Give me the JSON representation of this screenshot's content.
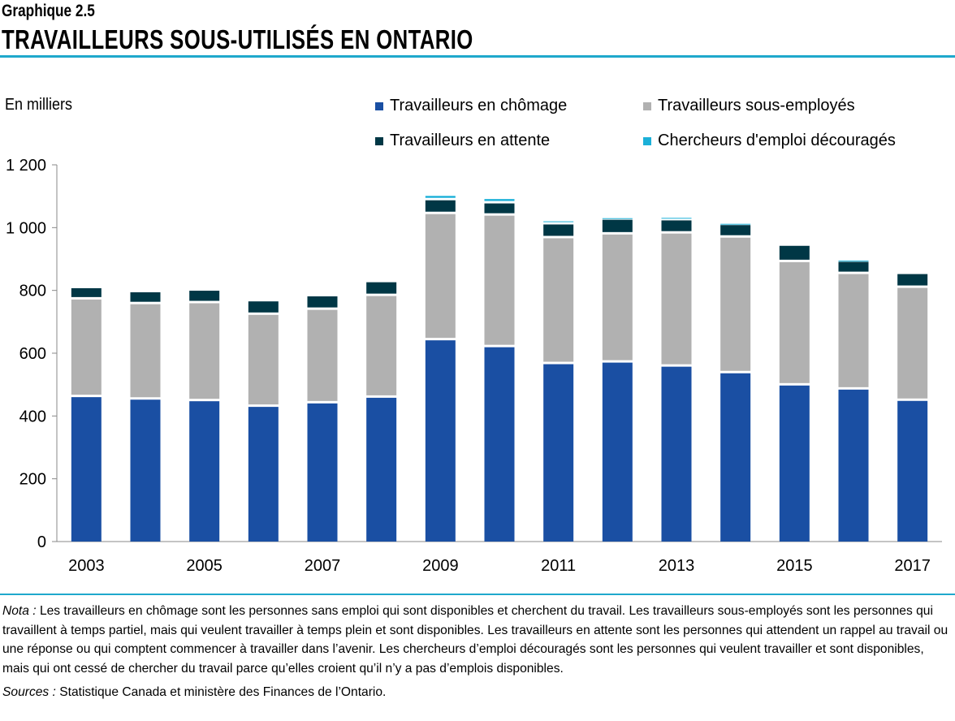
{
  "header": {
    "subtitle": "Graphique 2.5",
    "title": "TRAVAILLEURS SOUS-UTILISÉS EN ONTARIO"
  },
  "colors": {
    "accent_rule": "#1fa8cc",
    "unemployed": "#1a4fa3",
    "underemployed": "#b1b1b1",
    "waiting": "#003745",
    "discouraged": "#1bb0d8"
  },
  "chart_data": {
    "type": "bar",
    "stacked": true,
    "title": "TRAVAILLEURS SOUS-UTILISÉS EN ONTARIO",
    "ylabel": "En milliers",
    "xlabel": "",
    "ylim": [
      0,
      1200
    ],
    "yticks": [
      0,
      200,
      400,
      600,
      800,
      1000,
      1200
    ],
    "ytick_labels": [
      "0",
      "200",
      "400",
      "600",
      "800",
      "1 000",
      "1 200"
    ],
    "categories": [
      "2003",
      "2004",
      "2005",
      "2006",
      "2007",
      "2008",
      "2009",
      "2010",
      "2011",
      "2012",
      "2013",
      "2014",
      "2015",
      "2016",
      "2017"
    ],
    "xtick_labels": [
      "2003",
      "",
      "2005",
      "",
      "2007",
      "",
      "2009",
      "",
      "2011",
      "",
      "2013",
      "",
      "2015",
      "",
      "2017"
    ],
    "grid": false,
    "legend_placement": "top",
    "series": [
      {
        "name": "Travailleurs en chômage",
        "color": "#1a4fa3",
        "values": [
          460,
          452,
          447,
          429,
          440,
          458,
          641,
          619,
          565,
          570,
          557,
          536,
          497,
          484,
          448
        ]
      },
      {
        "name": "Travailleurs sous-employés",
        "color": "#b1b1b1",
        "values": [
          311,
          304,
          312,
          293,
          298,
          324,
          402,
          419,
          401,
          408,
          424,
          432,
          393,
          368,
          360
        ]
      },
      {
        "name": "Travailleurs en attente",
        "color": "#003745",
        "values": [
          36,
          38,
          40,
          43,
          43,
          44,
          44,
          39,
          44,
          47,
          42,
          40,
          52,
          39,
          44
        ]
      },
      {
        "name": "Chercheurs d'emploi découragés",
        "color": "#1bb0d8",
        "values": [
          0,
          0,
          0,
          0,
          0,
          0,
          14,
          14,
          10,
          5,
          8,
          4,
          0,
          4,
          0
        ]
      }
    ]
  },
  "note": {
    "label": "Nota :",
    "text": " Les travailleurs en chômage sont les personnes sans emploi qui sont disponibles et cherchent du travail. Les travailleurs sous-employés sont les personnes qui travaillent à temps partiel, mais qui veulent travailler à temps plein et sont disponibles. Les travailleurs en attente sont les personnes qui attendent un rappel au travail ou une réponse ou qui comptent commencer à travailler dans l’avenir. Les chercheurs d’emploi découragés sont les personnes qui veulent travailler et sont disponibles, mais qui ont cessé de chercher du travail parce qu’elles croient qu’il n’y a pas d’emplois disponibles."
  },
  "sources": {
    "label": "Sources :",
    "text": " Statistique Canada et ministère des Finances de l’Ontario."
  }
}
